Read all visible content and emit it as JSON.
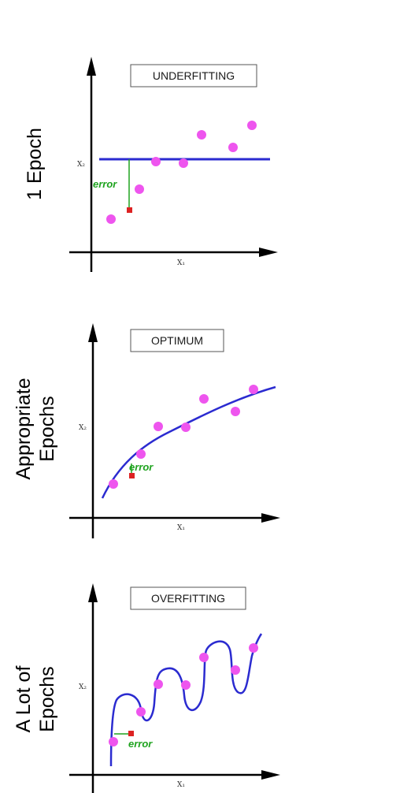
{
  "panels": [
    {
      "id": "underfitting",
      "side_label": "1 Epoch",
      "title": "UNDERFITTING",
      "x_axis": "X₁",
      "y_axis": "X₂",
      "error_label": "error",
      "colors": {
        "points": "#ee55ee",
        "curve": "#2b2bd0",
        "error_line": "#1fa31f",
        "error_marker": "#dd2222"
      }
    },
    {
      "id": "optimum",
      "side_label": "Appropriate\nEpochs",
      "title": "OPTIMUM",
      "x_axis": "X₁",
      "y_axis": "X₂",
      "error_label": "error",
      "colors": {
        "points": "#ee55ee",
        "curve": "#2b2bd0",
        "error_line": "#1fa31f",
        "error_marker": "#dd2222"
      }
    },
    {
      "id": "overfitting",
      "side_label": "A Lot of\nEpochs",
      "title": "OVERFITTING",
      "x_axis": "X₁",
      "y_axis": "X₂",
      "error_label": "error",
      "colors": {
        "points": "#ee55ee",
        "curve": "#2b2bd0",
        "error_line": "#1fa31f",
        "error_marker": "#dd2222"
      }
    }
  ]
}
